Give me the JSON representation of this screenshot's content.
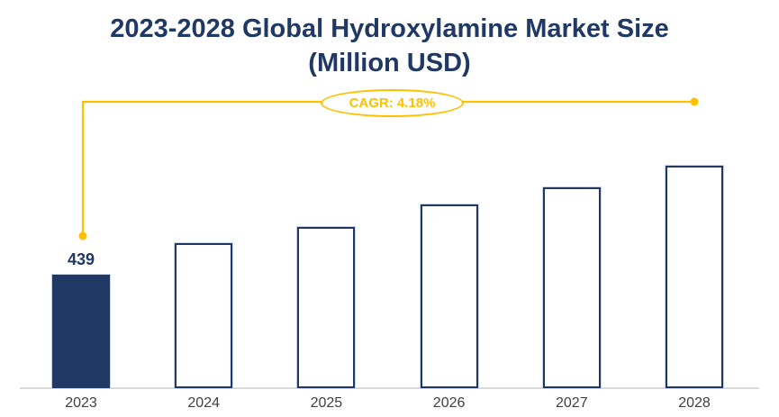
{
  "title": {
    "line1": "2023-2028 Global Hydroxylamine Market Size",
    "line2": "(Million USD)"
  },
  "cagr_label": "CAGR: 4.18%",
  "colors": {
    "navy": "#1F3864",
    "gold": "#FFC000",
    "axis_label": "#404040",
    "baseline_gray": "#D9D9D9"
  },
  "chart_data": {
    "type": "bar",
    "title": "2023-2028 Global Hydroxylamine Market Size (Million USD)",
    "categories": [
      "2023",
      "2024",
      "2025",
      "2026",
      "2027",
      "2028"
    ],
    "values": [
      439,
      468,
      483,
      503,
      519,
      539
    ],
    "data_labels": [
      "439",
      "",
      "",
      "",
      "",
      ""
    ],
    "highlighted_index": 0,
    "cagr_percent": "4.18%",
    "xlabel": "",
    "ylabel": "Million USD",
    "ylim": [
      336,
      560
    ],
    "grid": false,
    "legend": "none",
    "y_axis_visible": false
  }
}
